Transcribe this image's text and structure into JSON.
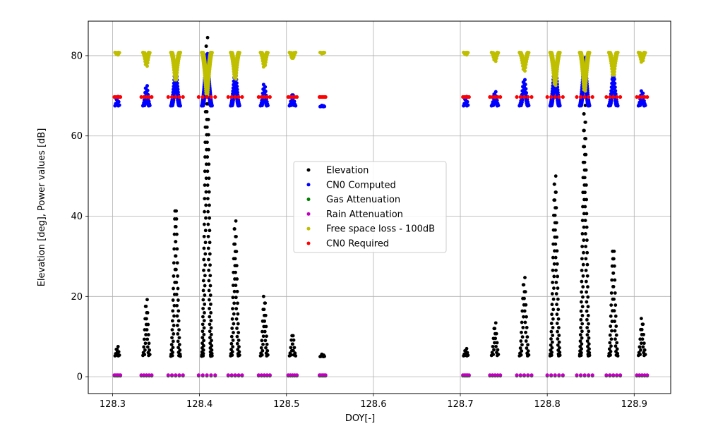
{
  "chart_data": {
    "type": "scatter",
    "title": "",
    "xlabel": "DOY[-]",
    "ylabel": "Elevation [deg], Power values [dB]",
    "xlim": [
      128.272,
      128.942
    ],
    "ylim": [
      -4.2,
      88.6
    ],
    "x_ticks": [
      128.3,
      128.4,
      128.5,
      128.6,
      128.7,
      128.8,
      128.9
    ],
    "x_tick_labels": [
      "128.3",
      "128.4",
      "128.5",
      "128.6",
      "128.7",
      "128.8",
      "128.9"
    ],
    "y_ticks": [
      0,
      20,
      40,
      60,
      80
    ],
    "y_tick_labels": [
      "0",
      "20",
      "40",
      "60",
      "80"
    ],
    "grid": true,
    "legend_position": "center",
    "passes": [
      {
        "start": 128.302,
        "end": 128.309,
        "max_elevation": 7.5,
        "min_elevation": 5.2,
        "cn0_min": 67.5,
        "cn0_max": 69.8,
        "fsl_min": 80.2,
        "fsl_max": 80.8
      },
      {
        "start": 128.333,
        "end": 128.345,
        "max_elevation": 19.2,
        "min_elevation": 5.3,
        "cn0_min": 67.5,
        "cn0_max": 72.5,
        "fsl_min": 77.4,
        "fsl_max": 80.8
      },
      {
        "start": 128.364,
        "end": 128.381,
        "max_elevation": 42.3,
        "min_elevation": 5.1,
        "cn0_min": 67.5,
        "cn0_max": 76.5,
        "fsl_min": 73.8,
        "fsl_max": 80.8
      },
      {
        "start": 128.399,
        "end": 128.418,
        "max_elevation": 84.5,
        "min_elevation": 5.1,
        "cn0_min": 67.5,
        "cn0_max": 80.5,
        "fsl_min": 70.2,
        "fsl_max": 80.8
      },
      {
        "start": 128.433,
        "end": 128.449,
        "max_elevation": 38.8,
        "min_elevation": 5.2,
        "cn0_min": 67.5,
        "cn0_max": 76.0,
        "fsl_min": 74.2,
        "fsl_max": 80.8
      },
      {
        "start": 128.468,
        "end": 128.481,
        "max_elevation": 20.0,
        "min_elevation": 5.2,
        "cn0_min": 67.5,
        "cn0_max": 72.8,
        "fsl_min": 77.2,
        "fsl_max": 80.8
      },
      {
        "start": 128.502,
        "end": 128.512,
        "max_elevation": 10.8,
        "min_elevation": 5.2,
        "cn0_min": 67.5,
        "cn0_max": 70.5,
        "fsl_min": 79.2,
        "fsl_max": 80.8
      },
      {
        "start": 128.538,
        "end": 128.545,
        "max_elevation": 5.6,
        "min_elevation": 5.0,
        "cn0_min": 67.3,
        "cn0_max": 67.6,
        "fsl_min": 80.5,
        "fsl_max": 80.8
      },
      {
        "start": 128.703,
        "end": 128.71,
        "max_elevation": 7.0,
        "min_elevation": 5.2,
        "cn0_min": 67.5,
        "cn0_max": 69.8,
        "fsl_min": 80.2,
        "fsl_max": 80.8
      },
      {
        "start": 128.734,
        "end": 128.746,
        "max_elevation": 13.4,
        "min_elevation": 5.3,
        "cn0_min": 67.5,
        "cn0_max": 71.0,
        "fsl_min": 78.6,
        "fsl_max": 80.8
      },
      {
        "start": 128.765,
        "end": 128.782,
        "max_elevation": 24.7,
        "min_elevation": 5.2,
        "cn0_min": 67.5,
        "cn0_max": 74.0,
        "fsl_min": 76.2,
        "fsl_max": 80.8
      },
      {
        "start": 128.8,
        "end": 128.818,
        "max_elevation": 50.0,
        "min_elevation": 5.2,
        "cn0_min": 67.5,
        "cn0_max": 78.0,
        "fsl_min": 72.6,
        "fsl_max": 80.8
      },
      {
        "start": 128.834,
        "end": 128.852,
        "max_elevation": 67.6,
        "min_elevation": 5.2,
        "cn0_min": 67.5,
        "cn0_max": 79.5,
        "fsl_min": 71.2,
        "fsl_max": 80.8
      },
      {
        "start": 128.868,
        "end": 128.884,
        "max_elevation": 32.2,
        "min_elevation": 5.2,
        "cn0_min": 67.5,
        "cn0_max": 75.5,
        "fsl_min": 75.0,
        "fsl_max": 80.8
      },
      {
        "start": 128.903,
        "end": 128.915,
        "max_elevation": 14.5,
        "min_elevation": 5.3,
        "cn0_min": 67.5,
        "cn0_max": 71.2,
        "fsl_min": 78.4,
        "fsl_max": 80.8
      }
    ],
    "series": [
      {
        "name": "Elevation",
        "color": "#000000",
        "field": "elevation"
      },
      {
        "name": "CN0 Computed",
        "color": "#0000ff",
        "field": "cn0"
      },
      {
        "name": "Gas Attenuation",
        "color": "#008000",
        "field": "gas",
        "value": 0.2
      },
      {
        "name": "Rain Attenuation",
        "color": "#bf00bf",
        "field": "rain",
        "value": 0.4
      },
      {
        "name": "Free space loss - 100dB",
        "color": "#bfbf00",
        "field": "fsl"
      },
      {
        "name": "CN0 Required",
        "color": "#ff0000",
        "field": "cn0req",
        "value": 69.7
      }
    ]
  }
}
